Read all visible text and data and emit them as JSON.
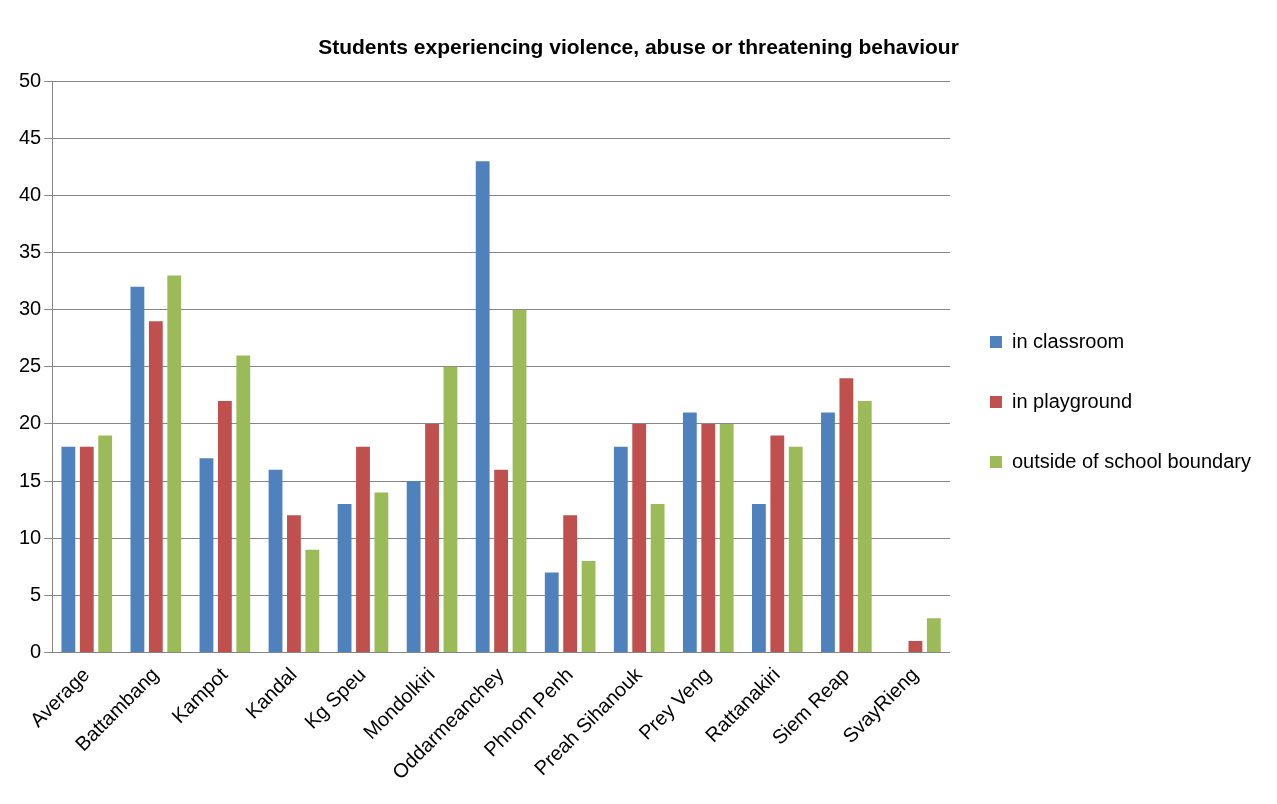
{
  "chart_data": {
    "type": "bar",
    "title": "Students experiencing violence, abuse or threatening behaviour",
    "categories": [
      "Average",
      "Battambang",
      "Kampot",
      "Kandal",
      "Kg Speu",
      "Mondolkiri",
      "Oddarmeanchey",
      "Phnom Penh",
      "Preah Sihanouk",
      "Prey Veng",
      "Rattanakiri",
      "Siem Reap",
      "SvayRieng"
    ],
    "series": [
      {
        "name": "in classroom",
        "color": "#4f81bd",
        "values": [
          18,
          32,
          17,
          16,
          13,
          15,
          43,
          7,
          18,
          21,
          13,
          21,
          0
        ]
      },
      {
        "name": "in playground",
        "color": "#c0504d",
        "values": [
          18,
          29,
          22,
          12,
          18,
          20,
          16,
          12,
          20,
          20,
          19,
          24,
          1
        ]
      },
      {
        "name": "outside of school boundary",
        "color": "#9bbb59",
        "values": [
          19,
          33,
          26,
          9,
          14,
          25,
          30,
          8,
          13,
          20,
          18,
          22,
          3
        ]
      }
    ],
    "ylim": [
      0,
      50
    ],
    "yticks": [
      0,
      5,
      10,
      15,
      20,
      25,
      30,
      35,
      40,
      45,
      50
    ],
    "grid": "y",
    "legend": "right"
  }
}
